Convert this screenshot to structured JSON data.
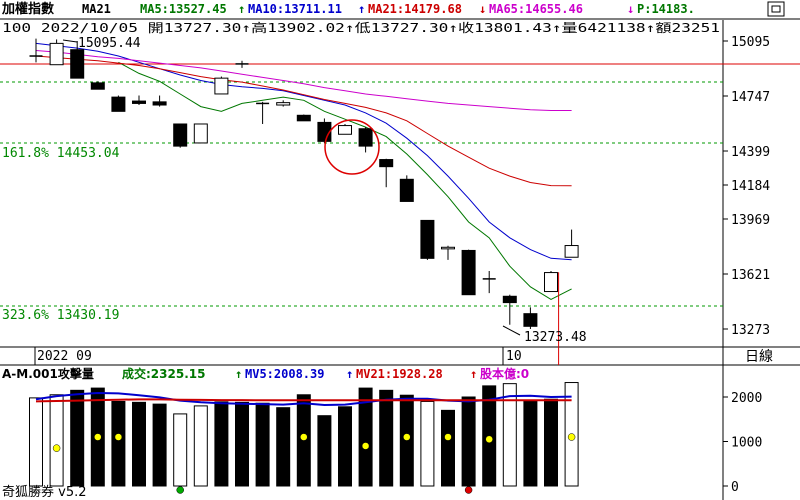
{
  "header": {
    "name": "加權指數",
    "ma_label": "MA21",
    "ma5": "MA5:13527.45",
    "ma10": "MA10:13711.11",
    "ma21": "MA21:14179.68",
    "ma65": "MA65:14655.46",
    "p": "P:14183.",
    "line2": "100 2022/10/05 開13727.30↑高13902.02↑低13727.30↑收13801.43↑量6421138↑額23251"
  },
  "arrows": {
    "ma5": "↑",
    "ma10": "↑",
    "ma21": "↓",
    "ma65": "↓"
  },
  "scroll_icon": "scroll-box-icon",
  "annotations": {
    "fib_161": "161.8% 14453.04",
    "fib_323": "323.6% 13430.19",
    "high_label": "15095.44",
    "low_label": "13273.48"
  },
  "x_axis": {
    "month_sep": "2022 09",
    "oct": "10"
  },
  "period_label": "日線",
  "volume_header": {
    "title": "A-M.001攻擊量",
    "vol": "成交:2325.15",
    "mv5": "MV5:2008.39",
    "mv21": "MV21:1928.28",
    "share": "股本億:0"
  },
  "volume_arrows": {
    "vol": "↑",
    "mv5": "↑",
    "mv21": "↑"
  },
  "footer": {
    "brand": "奇狐勝券 v5.2"
  },
  "colors": {
    "ma5": "#007700",
    "ma10": "#0000cc",
    "ma21": "#cc0000",
    "ma65": "#cc00cc",
    "fib": "#008800",
    "grid": "#009900",
    "red_line": "#dd0000"
  },
  "chart_data": [
    {
      "type": "candlestick",
      "title": "加權指數",
      "y_ticks": [
        15095,
        14747,
        14399,
        14184,
        13969,
        13621,
        13273
      ],
      "ylim": [
        13080,
        15240
      ],
      "x_labels": [
        "2022 09",
        "10"
      ],
      "candles": [
        {
          "o": 15000,
          "h": 15110,
          "l": 14960,
          "c": 15000
        },
        {
          "o": 14945,
          "h": 15105,
          "l": 14945,
          "c": 15080
        },
        {
          "o": 15040,
          "h": 15095,
          "l": 14860,
          "c": 14860
        },
        {
          "o": 14830,
          "h": 14840,
          "l": 14790,
          "c": 14790
        },
        {
          "o": 14740,
          "h": 14750,
          "l": 14650,
          "c": 14650
        },
        {
          "o": 14715,
          "h": 14750,
          "l": 14690,
          "c": 14700
        },
        {
          "o": 14710,
          "h": 14750,
          "l": 14680,
          "c": 14690
        },
        {
          "o": 14570,
          "h": 14570,
          "l": 14420,
          "c": 14430
        },
        {
          "o": 14450,
          "h": 14570,
          "l": 14450,
          "c": 14570
        },
        {
          "o": 14760,
          "h": 14870,
          "l": 14760,
          "c": 14860
        },
        {
          "o": 14950,
          "h": 14970,
          "l": 14925,
          "c": 14945
        },
        {
          "o": 14700,
          "h": 14710,
          "l": 14570,
          "c": 14695
        },
        {
          "o": 14690,
          "h": 14720,
          "l": 14680,
          "c": 14705
        },
        {
          "o": 14625,
          "h": 14630,
          "l": 14590,
          "c": 14590
        },
        {
          "o": 14580,
          "h": 14605,
          "l": 14450,
          "c": 14460
        },
        {
          "o": 14505,
          "h": 14570,
          "l": 14505,
          "c": 14560
        },
        {
          "o": 14540,
          "h": 14550,
          "l": 14390,
          "c": 14430
        },
        {
          "o": 14345,
          "h": 14350,
          "l": 14170,
          "c": 14300
        },
        {
          "o": 14220,
          "h": 14245,
          "l": 14080,
          "c": 14080
        },
        {
          "o": 13960,
          "h": 13960,
          "l": 13710,
          "c": 13720
        },
        {
          "o": 13780,
          "h": 13800,
          "l": 13710,
          "c": 13790
        },
        {
          "o": 13770,
          "h": 13775,
          "l": 13490,
          "c": 13490
        },
        {
          "o": 13590,
          "h": 13640,
          "l": 13500,
          "c": 13590
        },
        {
          "o": 13480,
          "h": 13490,
          "l": 13300,
          "c": 13440
        },
        {
          "o": 13370,
          "h": 13410,
          "l": 13273,
          "c": 13290
        },
        {
          "o": 13510,
          "h": 13640,
          "l": 13510,
          "c": 13630
        },
        {
          "o": 13727,
          "h": 13902,
          "l": 13727,
          "c": 13801
        }
      ],
      "series": [
        {
          "name": "MA5",
          "values": [
            null,
            null,
            null,
            null,
            14960,
            14890,
            14840,
            14760,
            14680,
            14650,
            14700,
            14720,
            14740,
            14720,
            14650,
            14600,
            14550,
            14490,
            14380,
            14250,
            14110,
            13950,
            13850,
            13670,
            13540,
            13460,
            13527
          ]
        },
        {
          "name": "MA10",
          "values": [
            15080,
            15065,
            15050,
            15030,
            15000,
            14960,
            14920,
            14880,
            14845,
            14820,
            14805,
            14795,
            14780,
            14750,
            14720,
            14690,
            14640,
            14575,
            14480,
            14370,
            14240,
            14100,
            13950,
            13850,
            13775,
            13720,
            13711
          ]
        },
        {
          "name": "MA21",
          "values": [
            15000,
            14990,
            14980,
            14970,
            14955,
            14940,
            14920,
            14895,
            14870,
            14850,
            14835,
            14810,
            14785,
            14755,
            14725,
            14700,
            14675,
            14640,
            14590,
            14510,
            14430,
            14360,
            14290,
            14240,
            14200,
            14180,
            14179
          ]
        },
        {
          "name": "MA65",
          "values": [
            15035,
            15025,
            15010,
            14995,
            14985,
            14970,
            14955,
            14940,
            14925,
            14905,
            14885,
            14865,
            14845,
            14825,
            14800,
            14780,
            14760,
            14745,
            14730,
            14715,
            14700,
            14690,
            14680,
            14670,
            14660,
            14655,
            14655
          ]
        }
      ]
    },
    {
      "type": "bar",
      "title": "A-M.001攻擊量",
      "y_ticks": [
        2000,
        1000,
        0
      ],
      "ylim": [
        0,
        2750
      ],
      "values": [
        1980,
        2050,
        2150,
        2200,
        1900,
        1880,
        1840,
        1620,
        1800,
        1890,
        1880,
        1860,
        1760,
        2050,
        1580,
        1780,
        2200,
        2150,
        2040,
        1900,
        1700,
        2000,
        2250,
        2300,
        1900,
        1950,
        2325
      ],
      "hollow": [
        1,
        1,
        0,
        0,
        0,
        0,
        0,
        1,
        1,
        0,
        0,
        0,
        0,
        0,
        0,
        0,
        0,
        0,
        0,
        1,
        0,
        0,
        0,
        1,
        0,
        0,
        1
      ],
      "dots": [
        {
          "i": 1,
          "v": 850,
          "color": "#ffff00"
        },
        {
          "i": 3,
          "v": 1100,
          "color": "#ffff00"
        },
        {
          "i": 4,
          "v": 1100,
          "color": "#ffff00"
        },
        {
          "i": 7,
          "v": -250,
          "color": "#00aa00"
        },
        {
          "i": 13,
          "v": 1100,
          "color": "#ffff00"
        },
        {
          "i": 16,
          "v": 900,
          "color": "#ffff00"
        },
        {
          "i": 18,
          "v": 1100,
          "color": "#ffff00"
        },
        {
          "i": 20,
          "v": 1100,
          "color": "#ffff00"
        },
        {
          "i": 21,
          "v": -250,
          "color": "#dd0000"
        },
        {
          "i": 22,
          "v": 1050,
          "color": "#ffff00"
        },
        {
          "i": 26,
          "v": 1100,
          "color": "#ffff00"
        }
      ],
      "series": [
        {
          "name": "MV5",
          "values": [
            1950,
            2020,
            2060,
            2090,
            2080,
            2040,
            1990,
            1920,
            1880,
            1860,
            1850,
            1840,
            1830,
            1860,
            1820,
            1830,
            1880,
            1940,
            1960,
            1960,
            1920,
            1900,
            1940,
            2020,
            2030,
            2000,
            2008
          ]
        },
        {
          "name": "MV21",
          "values": [
            1900,
            1910,
            1920,
            1930,
            1940,
            1945,
            1945,
            1940,
            1935,
            1930,
            1930,
            1925,
            1925,
            1925,
            1925,
            1925,
            1925,
            1928,
            1928,
            1928,
            1928,
            1928,
            1928,
            1928,
            1928,
            1928,
            1928
          ]
        }
      ]
    }
  ]
}
